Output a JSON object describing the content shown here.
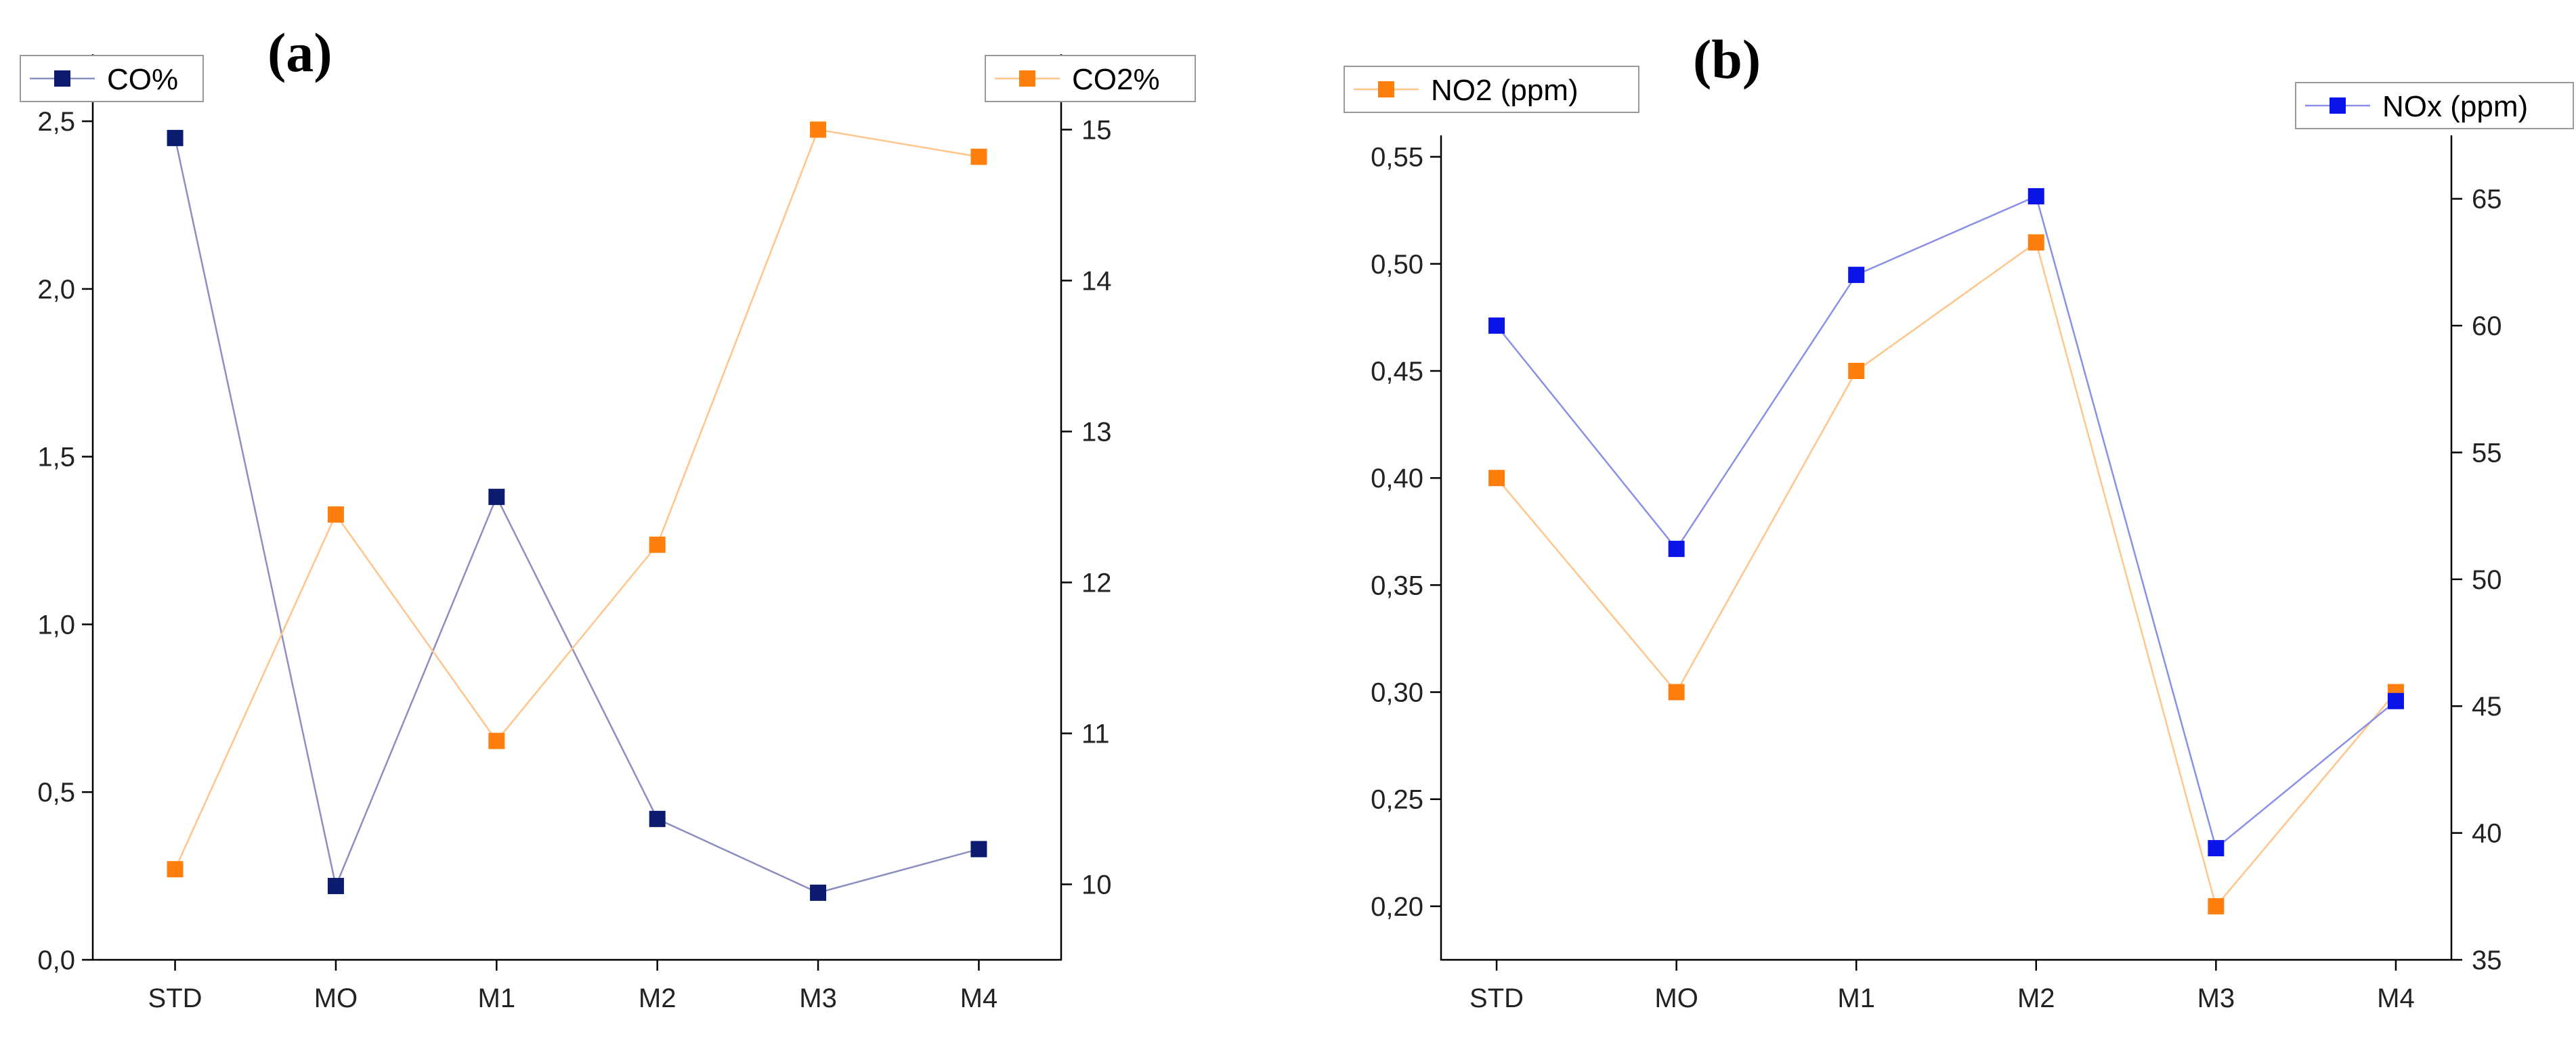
{
  "chart_data": [
    {
      "type": "line",
      "panel_label": "(a)",
      "categories": [
        "STD",
        "MO",
        "M1",
        "M2",
        "M3",
        "M4"
      ],
      "y_left": {
        "ticks": [
          "0,0",
          "0,5",
          "1,0",
          "1,5",
          "2,0",
          "2,5"
        ],
        "tick_values": [
          0,
          0.5,
          1.0,
          1.5,
          2.0,
          2.5
        ],
        "ylim": [
          0,
          2.7
        ]
      },
      "y_right": {
        "ticks": [
          "10",
          "11",
          "12",
          "13",
          "14",
          "15"
        ],
        "tick_values": [
          10,
          11,
          12,
          13,
          14,
          15
        ],
        "ylim": [
          9.5,
          15.5
        ]
      },
      "series": [
        {
          "name": "CO%",
          "axis": "left",
          "color": "#0d1b6e",
          "line_color": "#8a8fbf",
          "values": [
            2.45,
            0.22,
            1.38,
            0.42,
            0.2,
            0.33
          ]
        },
        {
          "name": "CO2%",
          "axis": "right",
          "color": "#ff7f0e",
          "line_color": "#ffc58a",
          "values": [
            10.1,
            12.45,
            10.95,
            12.25,
            15.0,
            14.82
          ]
        }
      ]
    },
    {
      "type": "line",
      "panel_label": "(b)",
      "categories": [
        "STD",
        "MO",
        "M1",
        "M2",
        "M3",
        "M4"
      ],
      "y_left": {
        "ticks": [
          "0,20",
          "0,25",
          "0,30",
          "0,35",
          "0,40",
          "0,45",
          "0,50",
          "0,55"
        ],
        "tick_values": [
          0.2,
          0.25,
          0.3,
          0.35,
          0.4,
          0.45,
          0.5,
          0.55
        ],
        "ylim": [
          0.175,
          0.56
        ]
      },
      "y_right": {
        "ticks": [
          "35",
          "40",
          "45",
          "50",
          "55",
          "60",
          "65"
        ],
        "tick_values": [
          35,
          40,
          45,
          50,
          55,
          60,
          65
        ],
        "ylim": [
          35,
          67.5
        ]
      },
      "series": [
        {
          "name": "NO2 (ppm)",
          "axis": "left",
          "color": "#ff7f0e",
          "line_color": "#ffc58a",
          "values": [
            0.4,
            0.3,
            0.45,
            0.51,
            0.2,
            0.3
          ]
        },
        {
          "name": "NOx (ppm)",
          "axis": "right",
          "color": "#0a14e6",
          "line_color": "#8a8fe8",
          "values": [
            60.0,
            51.2,
            62.0,
            65.1,
            39.4,
            45.2
          ]
        }
      ]
    }
  ]
}
